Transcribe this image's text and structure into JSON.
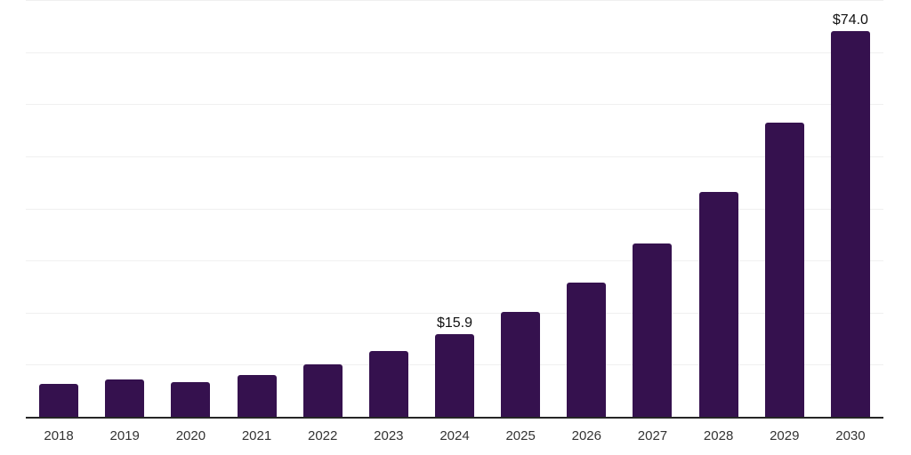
{
  "chart_data": {
    "type": "bar",
    "title": "",
    "xlabel": "",
    "ylabel": "",
    "categories": [
      "2018",
      "2019",
      "2020",
      "2021",
      "2022",
      "2023",
      "2024",
      "2025",
      "2026",
      "2027",
      "2028",
      "2029",
      "2030"
    ],
    "values": [
      6.3,
      7.1,
      6.7,
      8.1,
      10.0,
      12.6,
      15.9,
      20.1,
      25.7,
      33.3,
      43.1,
      56.4,
      74.0
    ],
    "data_labels": [
      "",
      "",
      "",
      "",
      "",
      "",
      "$15.9",
      "",
      "",
      "",
      "",
      "",
      "$74.0"
    ],
    "ylim": [
      0,
      80
    ],
    "gridline_step": 10,
    "grid": "horizontal",
    "legend": "none",
    "colors": {
      "bar_fill": "#35114E",
      "axis_line": "#262626",
      "gridline": "#F0F0F0",
      "tick_label": "#333333",
      "data_label": "#111111",
      "background": "#FFFFFF"
    }
  }
}
